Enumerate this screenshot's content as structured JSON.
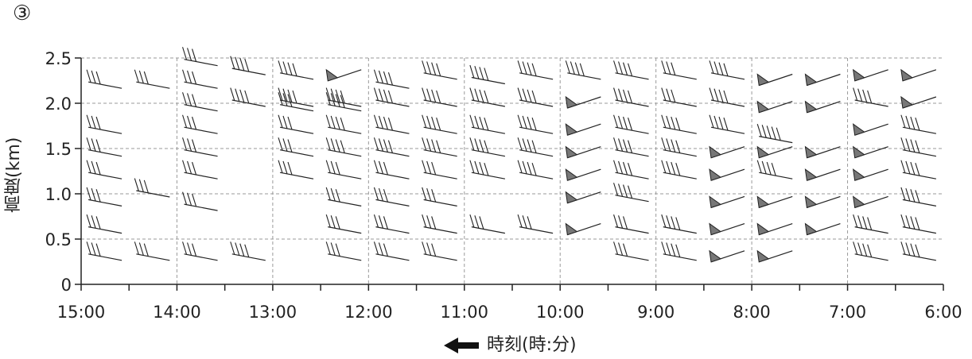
{
  "panel_label": "③",
  "chart_data": {
    "type": "wind_profile_time_height",
    "ylabel": "高度(km)",
    "xlabel": "時刻(時:分)",
    "x_direction_arrow": "left",
    "yticks": [
      "0",
      "0.5",
      "1.0",
      "1.5",
      "2.0",
      "2.5"
    ],
    "ytick_values": [
      0,
      0.5,
      1.0,
      1.5,
      2.0,
      2.5
    ],
    "ylim": [
      0,
      2.5
    ],
    "xticks": [
      "15:00",
      "14:00",
      "13:00",
      "12:00",
      "11:00",
      "10:00",
      "9:00",
      "8:00",
      "7:00",
      "6:00"
    ],
    "grid": "dashed",
    "observation_times_hours": [
      14.75,
      14.25,
      13.75,
      13.25,
      12.75,
      12.25,
      11.75,
      11.25,
      10.75,
      10.25,
      9.75,
      9.25,
      8.75,
      8.25,
      7.75,
      7.25,
      6.75,
      6.25
    ],
    "heights_km": [
      0.3,
      0.6,
      0.9,
      1.2,
      1.45,
      1.7,
      1.95,
      2.2,
      2.4
    ],
    "wind_barbs": [
      {
        "t": 14.75,
        "barbs": [
          [
            0.3,
            "full3"
          ],
          [
            0.6,
            "full3"
          ],
          [
            0.9,
            "full3"
          ],
          [
            1.2,
            "full3"
          ],
          [
            1.45,
            "full3"
          ],
          [
            1.7,
            "full3"
          ],
          [
            2.2,
            "full3"
          ]
        ]
      },
      {
        "t": 14.25,
        "barbs": [
          [
            0.3,
            "full3"
          ],
          [
            1.0,
            "full3"
          ],
          [
            2.2,
            "full3"
          ]
        ]
      },
      {
        "t": 13.75,
        "barbs": [
          [
            0.3,
            "full3"
          ],
          [
            0.85,
            "full3"
          ],
          [
            1.2,
            "full3"
          ],
          [
            1.45,
            "full3"
          ],
          [
            1.7,
            "full3"
          ],
          [
            1.95,
            "full3"
          ],
          [
            2.2,
            "full3"
          ],
          [
            2.45,
            "full3"
          ]
        ]
      },
      {
        "t": 13.25,
        "barbs": [
          [
            0.3,
            "full4"
          ],
          [
            2.0,
            "full4"
          ],
          [
            2.35,
            "full4"
          ]
        ]
      },
      {
        "t": 12.75,
        "barbs": [
          [
            1.2,
            "full3"
          ],
          [
            1.45,
            "full3"
          ],
          [
            1.7,
            "full3"
          ],
          [
            1.95,
            "full3"
          ],
          [
            2.0,
            "full4"
          ],
          [
            2.3,
            "full4"
          ]
        ]
      },
      {
        "t": 12.25,
        "barbs": [
          [
            0.3,
            "full3"
          ],
          [
            0.6,
            "full3"
          ],
          [
            0.9,
            "full3"
          ],
          [
            1.2,
            "full3"
          ],
          [
            1.45,
            "full4"
          ],
          [
            1.7,
            "full4"
          ],
          [
            1.95,
            "full4"
          ],
          [
            2.0,
            "full4"
          ],
          [
            2.3,
            "pennant"
          ]
        ]
      },
      {
        "t": 11.75,
        "barbs": [
          [
            0.3,
            "full3"
          ],
          [
            0.6,
            "full3"
          ],
          [
            0.9,
            "full3"
          ],
          [
            1.2,
            "full3"
          ],
          [
            1.45,
            "full4"
          ],
          [
            1.7,
            "full4"
          ],
          [
            2.0,
            "full4"
          ],
          [
            2.2,
            "full4"
          ]
        ]
      },
      {
        "t": 11.25,
        "barbs": [
          [
            0.3,
            "full3"
          ],
          [
            0.6,
            "full3"
          ],
          [
            0.9,
            "full3"
          ],
          [
            1.2,
            "full3"
          ],
          [
            1.45,
            "full4"
          ],
          [
            1.7,
            "full4"
          ],
          [
            2.0,
            "full4"
          ],
          [
            2.3,
            "full4"
          ]
        ]
      },
      {
        "t": 10.75,
        "barbs": [
          [
            0.6,
            "full3"
          ],
          [
            1.2,
            "full4"
          ],
          [
            1.45,
            "full4"
          ],
          [
            1.7,
            "full4"
          ],
          [
            2.0,
            "full4"
          ],
          [
            2.25,
            "full4"
          ]
        ]
      },
      {
        "t": 10.25,
        "barbs": [
          [
            0.6,
            "full3"
          ],
          [
            1.2,
            "full4"
          ],
          [
            1.45,
            "full4"
          ],
          [
            1.7,
            "full4"
          ],
          [
            2.0,
            "full4"
          ],
          [
            2.3,
            "full4"
          ]
        ]
      },
      {
        "t": 9.75,
        "barbs": [
          [
            0.6,
            "pennant"
          ],
          [
            0.95,
            "pennant"
          ],
          [
            1.2,
            "pennant"
          ],
          [
            1.45,
            "pennant"
          ],
          [
            1.7,
            "pennant"
          ],
          [
            2.0,
            "pennant"
          ],
          [
            2.3,
            "full4"
          ]
        ]
      },
      {
        "t": 9.25,
        "barbs": [
          [
            0.3,
            "full3"
          ],
          [
            0.6,
            "full3"
          ],
          [
            0.95,
            "full4"
          ],
          [
            1.2,
            "full4"
          ],
          [
            1.45,
            "full4"
          ],
          [
            1.7,
            "full4"
          ],
          [
            2.0,
            "full4"
          ],
          [
            2.3,
            "full4"
          ]
        ]
      },
      {
        "t": 8.75,
        "barbs": [
          [
            0.3,
            "full4"
          ],
          [
            0.6,
            "full4"
          ],
          [
            1.2,
            "full4"
          ],
          [
            1.45,
            "full4"
          ],
          [
            1.7,
            "full4"
          ],
          [
            2.0,
            "full3"
          ],
          [
            2.3,
            "full3"
          ]
        ]
      },
      {
        "t": 8.25,
        "barbs": [
          [
            0.3,
            "pennant"
          ],
          [
            0.6,
            "pennant"
          ],
          [
            0.9,
            "pennant"
          ],
          [
            1.2,
            "pennant"
          ],
          [
            1.45,
            "pennant"
          ],
          [
            1.7,
            "full4"
          ],
          [
            2.0,
            "full4"
          ],
          [
            2.3,
            "full4"
          ]
        ]
      },
      {
        "t": 7.75,
        "barbs": [
          [
            0.3,
            "pennant"
          ],
          [
            0.6,
            "pennant"
          ],
          [
            0.9,
            "pennant"
          ],
          [
            1.2,
            "full4"
          ],
          [
            1.45,
            "pennant"
          ],
          [
            1.6,
            "full5"
          ],
          [
            1.95,
            "pennant"
          ],
          [
            2.25,
            "pennant"
          ]
        ]
      },
      {
        "t": 7.25,
        "barbs": [
          [
            0.6,
            "pennant"
          ],
          [
            0.9,
            "pennant"
          ],
          [
            1.2,
            "pennant"
          ],
          [
            1.45,
            "pennant"
          ],
          [
            1.95,
            "pennant"
          ],
          [
            2.25,
            "pennant"
          ]
        ]
      },
      {
        "t": 6.75,
        "barbs": [
          [
            0.3,
            "full4"
          ],
          [
            0.6,
            "full4"
          ],
          [
            0.9,
            "pennant"
          ],
          [
            1.2,
            "pennant"
          ],
          [
            1.45,
            "pennant"
          ],
          [
            1.7,
            "pennant"
          ],
          [
            2.0,
            "full4"
          ],
          [
            2.3,
            "pennant"
          ]
        ]
      },
      {
        "t": 6.25,
        "barbs": [
          [
            0.3,
            "full4"
          ],
          [
            0.6,
            "full4"
          ],
          [
            0.9,
            "full4"
          ],
          [
            1.2,
            "full4"
          ],
          [
            1.45,
            "full4"
          ],
          [
            1.7,
            "full4"
          ],
          [
            2.0,
            "pennant"
          ],
          [
            2.3,
            "pennant"
          ]
        ]
      }
    ]
  }
}
